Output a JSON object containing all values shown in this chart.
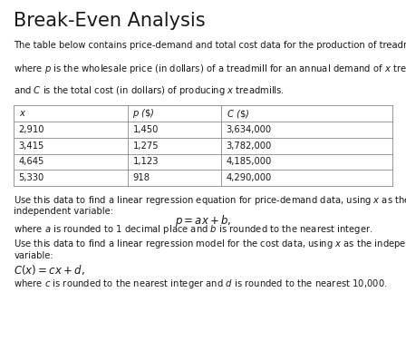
{
  "title": "Break-Even Analysis",
  "intro_line1": "The table below contains price-demand and total cost data for the production of treadmills,",
  "intro_line2": "where $p$ is the wholesale price (in dollars) of a treadmill for an annual demand of $x$ treadmills,",
  "intro_line3": "and $C$ is the total cost (in dollars) of producing $x$ treadmills.",
  "col_headers": [
    "$x$",
    "$p$ ($\\$$)",
    "$C$ ($\\$$)"
  ],
  "table_data": [
    [
      "2,910",
      "1,450",
      "3,634,000"
    ],
    [
      "3,415",
      "1,275",
      "3,782,000"
    ],
    [
      "4,645",
      "1,123",
      "4,185,000"
    ],
    [
      "5,330",
      "918",
      "4,290,000"
    ]
  ],
  "text1a": "Use this data to find a linear regression equation for price-demand data, using $x$ as the",
  "text1b": "independent variable:",
  "equation1": "$p = ax + b,$",
  "text2": "where $a$ is rounded to 1 decimal place and $b$ is rounded to the nearest integer.",
  "text3a": "Use this data to find a linear regression model for the cost data, using $x$ as the independent",
  "text3b": "variable:",
  "equation2": "$C(x) = cx + d,$",
  "text4": "where $c$ is rounded to the nearest integer and $d$ is rounded to the nearest 10,000.",
  "bg_color": "#ffffff",
  "text_color": "#1a1a1a",
  "line_color": "#888888",
  "title_fontsize": 15,
  "body_fontsize": 7.2,
  "eq_fontsize": 8.5,
  "col_splits": [
    0.034,
    0.315,
    0.545,
    0.966
  ]
}
